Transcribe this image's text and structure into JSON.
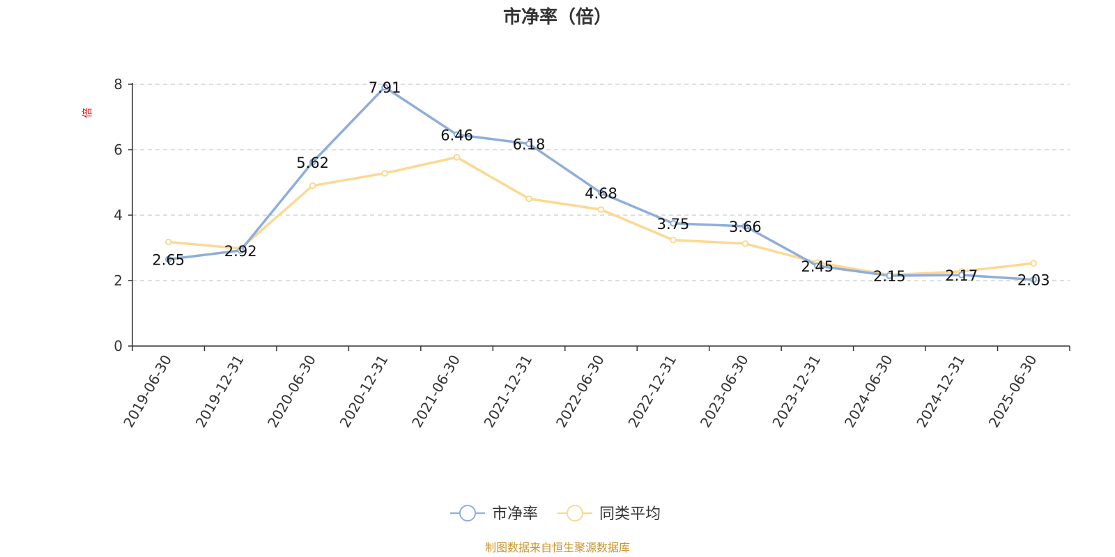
{
  "chart_data": {
    "type": "line",
    "title": "市净率（倍）",
    "ylabel": "倍",
    "ylim": [
      0,
      8
    ],
    "yticks": [
      0,
      2,
      4,
      6,
      8
    ],
    "grid": true,
    "legend_position": "bottom-center",
    "categories": [
      "2019-06-30",
      "2019-12-31",
      "2020-06-30",
      "2020-12-31",
      "2021-06-30",
      "2021-12-31",
      "2022-06-30",
      "2022-12-31",
      "2023-06-30",
      "2023-12-31",
      "2024-06-30",
      "2024-12-31",
      "2025-06-30"
    ],
    "series": [
      {
        "name": "市净率",
        "color": "#8eaedb",
        "values": [
          2.65,
          2.92,
          5.62,
          7.91,
          6.46,
          6.18,
          4.68,
          3.75,
          3.66,
          2.45,
          2.15,
          2.17,
          2.03
        ],
        "labels": [
          "2.65",
          "2.92",
          "5.62",
          "7.91",
          "6.46",
          "6.18",
          "4.68",
          "3.75",
          "3.66",
          "2.45",
          "2.15",
          "2.17",
          "2.03"
        ]
      },
      {
        "name": "同类平均",
        "color": "#fbd991",
        "values": [
          3.18,
          2.98,
          4.9,
          5.28,
          5.77,
          4.5,
          4.17,
          3.24,
          3.13,
          2.55,
          2.17,
          2.28,
          2.53
        ]
      }
    ]
  },
  "source_note": "制图数据来自恒生聚源数据库"
}
